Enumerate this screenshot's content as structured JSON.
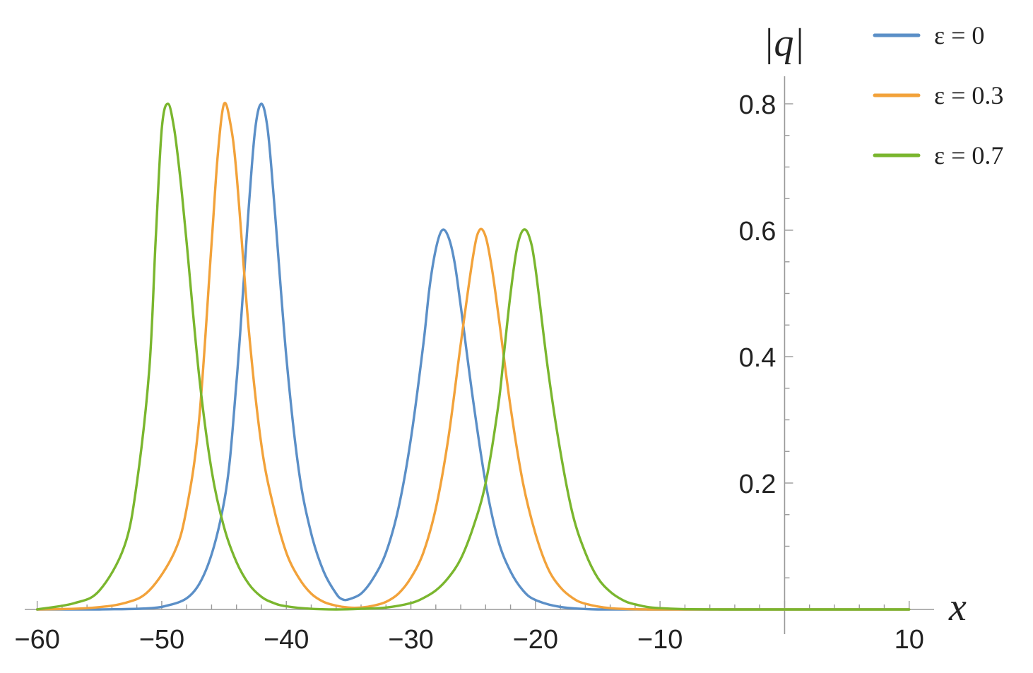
{
  "chart_data": {
    "type": "line",
    "title": "",
    "xlabel": "x",
    "ylabel": "|q|",
    "xlim": [
      -61,
      12
    ],
    "ylim": [
      0,
      0.85
    ],
    "x_ticks": [
      -60,
      -50,
      -40,
      -30,
      -20,
      -10,
      10
    ],
    "x_tick_labels": [
      "−60",
      "−50",
      "−40",
      "−30",
      "−20",
      "−10",
      "10"
    ],
    "y_ticks": [
      0.2,
      0.4,
      0.6,
      0.8
    ],
    "y_tick_labels": [
      "0.2",
      "0.4",
      "0.6",
      "0.8"
    ],
    "grid": false,
    "legend_position": "top-right",
    "series": [
      {
        "name": "ε = 0",
        "color": "#5b8fc7",
        "x": [
          -60,
          -55,
          -50,
          -47,
          -45,
          -44,
          -43,
          -42.5,
          -42,
          -41.5,
          -41,
          -40,
          -39,
          -38,
          -37,
          -36,
          -35.5,
          -35,
          -34,
          -33,
          -32,
          -31,
          -30,
          -29,
          -28.5,
          -28,
          -27.5,
          -27,
          -26.5,
          -26,
          -25,
          -24,
          -23,
          -22,
          -21,
          -20,
          -18,
          -15,
          -10,
          0,
          10
        ],
        "values": [
          0.0,
          0.0,
          0.004,
          0.04,
          0.17,
          0.36,
          0.64,
          0.76,
          0.8,
          0.76,
          0.65,
          0.4,
          0.22,
          0.12,
          0.06,
          0.025,
          0.016,
          0.016,
          0.025,
          0.05,
          0.09,
          0.16,
          0.27,
          0.42,
          0.51,
          0.57,
          0.6,
          0.59,
          0.55,
          0.48,
          0.33,
          0.2,
          0.11,
          0.06,
          0.03,
          0.015,
          0.004,
          0.0,
          0.0,
          0.0,
          0.0
        ]
      },
      {
        "name": "ε = 0.3",
        "color": "#f2a23a",
        "x": [
          -60,
          -56,
          -53,
          -51,
          -49,
          -48,
          -47,
          -46,
          -45.5,
          -45,
          -44.5,
          -44,
          -43,
          -42,
          -41,
          -40,
          -39,
          -38,
          -37,
          -36,
          -35,
          -34,
          -33,
          -32,
          -31,
          -30,
          -29,
          -28,
          -27,
          -26,
          -25,
          -24.5,
          -24,
          -23.5,
          -23,
          -22,
          -21,
          -20,
          -19,
          -18,
          -17,
          -16,
          -14,
          -11,
          -5,
          10
        ],
        "values": [
          0.0,
          0.002,
          0.01,
          0.03,
          0.09,
          0.16,
          0.3,
          0.58,
          0.72,
          0.8,
          0.77,
          0.69,
          0.44,
          0.26,
          0.16,
          0.09,
          0.05,
          0.025,
          0.012,
          0.006,
          0.003,
          0.003,
          0.006,
          0.012,
          0.025,
          0.05,
          0.09,
          0.16,
          0.27,
          0.42,
          0.56,
          0.6,
          0.59,
          0.54,
          0.47,
          0.32,
          0.2,
          0.12,
          0.065,
          0.035,
          0.018,
          0.009,
          0.002,
          0.0,
          0.0,
          0.0
        ]
      },
      {
        "name": "ε = 0.7",
        "color": "#7ab62e",
        "x": [
          -60,
          -57,
          -55,
          -53,
          -52,
          -51,
          -50.5,
          -50,
          -49.5,
          -49,
          -48.5,
          -48,
          -47,
          -46,
          -45,
          -44,
          -43,
          -42,
          -41,
          -40,
          -38,
          -36,
          -34,
          -32,
          -30,
          -29,
          -28,
          -27,
          -26,
          -25,
          -24,
          -23,
          -22.5,
          -22,
          -21.5,
          -21,
          -20.5,
          -20,
          -19,
          -18,
          -17,
          -16,
          -15,
          -14,
          -13,
          -12,
          -10,
          -5,
          10
        ],
        "values": [
          0.0,
          0.01,
          0.03,
          0.1,
          0.2,
          0.38,
          0.58,
          0.76,
          0.8,
          0.76,
          0.68,
          0.58,
          0.37,
          0.22,
          0.13,
          0.075,
          0.04,
          0.02,
          0.01,
          0.005,
          0.001,
          0.0,
          0.001,
          0.003,
          0.01,
          0.018,
          0.03,
          0.05,
          0.08,
          0.13,
          0.2,
          0.32,
          0.41,
          0.5,
          0.57,
          0.6,
          0.59,
          0.54,
          0.38,
          0.25,
          0.15,
          0.09,
          0.05,
          0.028,
          0.015,
          0.008,
          0.002,
          0.0,
          0.0
        ]
      }
    ]
  }
}
